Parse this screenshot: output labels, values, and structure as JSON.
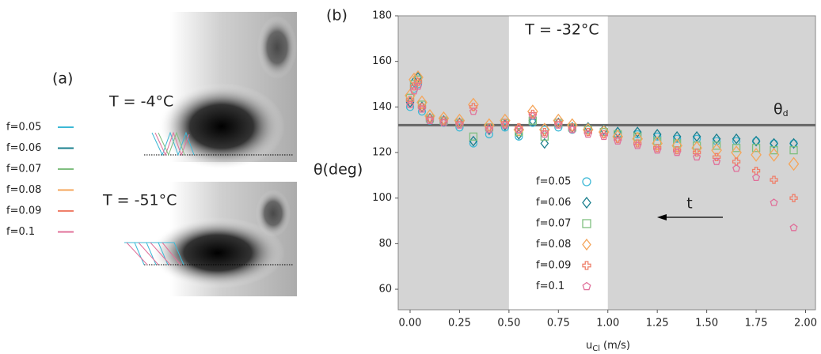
{
  "chart_data": [
    {
      "type": "image",
      "panel_label": "(a)",
      "annotations": [
        "T = -4°C",
        "T = -51°C"
      ],
      "legend": [
        {
          "name": "f=0.05",
          "color": "#3cb8d6"
        },
        {
          "name": "f=0.06",
          "color": "#1a7f8e"
        },
        {
          "name": "f=0.07",
          "color": "#7fbf7f"
        },
        {
          "name": "f=0.08",
          "color": "#f5a55a"
        },
        {
          "name": "f=0.09",
          "color": "#ef7f6a"
        },
        {
          "name": "f=0.1",
          "color": "#e0709a"
        }
      ]
    },
    {
      "type": "scatter",
      "panel_label": "(b)",
      "annotations": [
        "T = -32°C",
        "t"
      ],
      "threshold_label": [
        "θ",
        "d"
      ],
      "ylabel": "θ(deg)",
      "xlabel": [
        "u",
        "Cl",
        "(m/s)"
      ],
      "xlim": [
        -0.06,
        2.05
      ],
      "ylim": [
        51,
        180
      ],
      "xticks": [
        {
          "value": 0,
          "label": "0.00"
        },
        {
          "value": 0.25,
          "label": "0.25"
        },
        {
          "value": 0.5,
          "label": "0.50"
        },
        {
          "value": 0.75,
          "label": "0.75"
        },
        {
          "value": 1,
          "label": "1.00"
        },
        {
          "value": 1.25,
          "label": "1.25"
        },
        {
          "value": 1.5,
          "label": "1.50"
        },
        {
          "value": 1.75,
          "label": "1.75"
        },
        {
          "value": 2,
          "label": "2.00"
        }
      ],
      "yticks": [
        60,
        80,
        100,
        120,
        140,
        160,
        180
      ],
      "shaded_regions": [
        [
          -0.06,
          0.5
        ],
        [
          1.0,
          2.05
        ]
      ],
      "hline": 132,
      "legend_position": "lower center",
      "x": [
        0.0,
        0.02,
        0.04,
        0.06,
        0.1,
        0.17,
        0.25,
        0.32,
        0.4,
        0.48,
        0.55,
        0.62,
        0.68,
        0.75,
        0.82,
        0.9,
        0.98,
        1.05,
        1.15,
        1.25,
        1.35,
        1.45,
        1.55,
        1.65,
        1.75,
        1.84,
        1.94
      ],
      "series": [
        {
          "name": "f=0.05",
          "color": "#3cb8d6",
          "marker": "circle",
          "values": [
            140,
            148,
            150,
            138,
            134,
            133,
            131,
            124,
            128,
            131,
            127,
            133,
            130,
            131,
            130,
            130,
            129,
            128,
            128,
            127,
            126,
            126,
            125,
            125,
            125,
            124,
            124
          ]
        },
        {
          "name": "f=0.06",
          "color": "#1a7f8e",
          "marker": "diamond",
          "values": [
            142,
            151,
            153,
            140,
            135,
            134,
            133,
            125,
            130,
            132,
            128,
            134,
            124,
            133,
            131,
            131,
            130,
            129,
            129,
            128,
            127,
            127,
            126,
            126,
            125,
            124,
            124
          ]
        },
        {
          "name": "f=0.07",
          "color": "#7fbf7f",
          "marker": "square",
          "values": [
            144,
            150,
            152,
            141,
            135,
            134,
            133,
            127,
            131,
            133,
            129,
            134,
            127,
            133,
            131,
            130,
            129,
            128,
            127,
            125,
            124,
            123,
            123,
            122,
            122,
            121,
            121
          ]
        },
        {
          "name": "f=0.08",
          "color": "#f5a55a",
          "marker": "diamond",
          "values": [
            145,
            152,
            153,
            142,
            136,
            135,
            134,
            141,
            132,
            134,
            130,
            138,
            130,
            134,
            132,
            130,
            129,
            127,
            126,
            124,
            123,
            122,
            121,
            120,
            119,
            119,
            115
          ]
        },
        {
          "name": "f=0.09",
          "color": "#ef7f6a",
          "marker": "plus",
          "values": [
            143,
            149,
            151,
            140,
            135,
            134,
            133,
            140,
            131,
            133,
            131,
            137,
            129,
            133,
            131,
            129,
            128,
            126,
            124,
            122,
            121,
            120,
            118,
            116,
            112,
            108,
            100
          ]
        },
        {
          "name": "f=0.1",
          "color": "#e0709a",
          "marker": "pentagon",
          "values": [
            141,
            147,
            149,
            139,
            134,
            133,
            132,
            138,
            130,
            132,
            130,
            136,
            128,
            132,
            130,
            128,
            127,
            125,
            123,
            121,
            120,
            118,
            116,
            113,
            109,
            98,
            87
          ]
        }
      ]
    }
  ]
}
